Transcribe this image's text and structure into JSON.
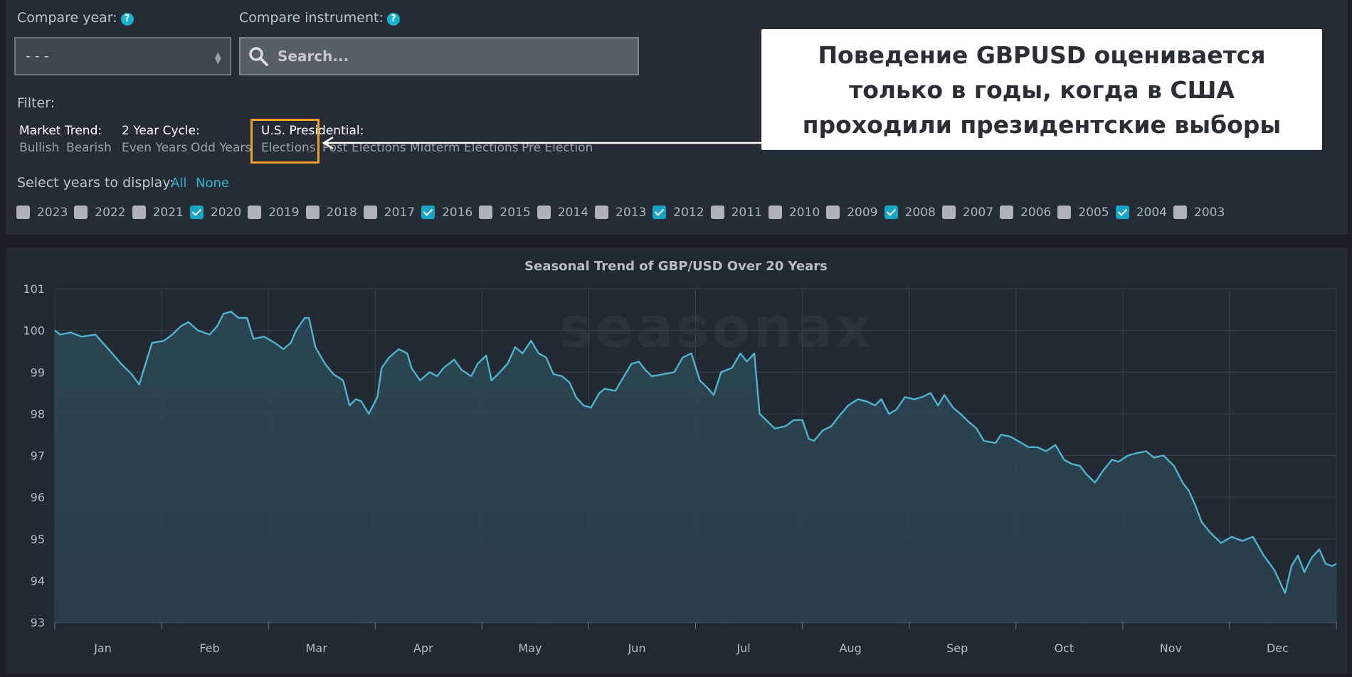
{
  "controls": {
    "compare_year_label": "Compare year:",
    "compare_year_value": "- - -",
    "compare_instrument_label": "Compare instrument:",
    "search_placeholder": "Search...",
    "help_glyph": "?"
  },
  "filter": {
    "label": "Filter:",
    "groups": [
      {
        "title": "Market Trend:",
        "options": [
          "Bullish",
          "Bearish"
        ]
      },
      {
        "title": "2 Year Cycle:",
        "options": [
          "Even Years",
          "Odd Years"
        ]
      },
      {
        "title": "U.S. Presidential:",
        "options": [
          "Elections",
          "Post Elections",
          "Midterm Elections",
          "Pre Election"
        ]
      }
    ]
  },
  "years_select": {
    "label": "Select years to display:",
    "all": "All",
    "none": "None",
    "years": [
      {
        "year": "2023",
        "checked": false
      },
      {
        "year": "2022",
        "checked": false
      },
      {
        "year": "2021",
        "checked": false
      },
      {
        "year": "2020",
        "checked": true
      },
      {
        "year": "2019",
        "checked": false
      },
      {
        "year": "2018",
        "checked": false
      },
      {
        "year": "2017",
        "checked": false
      },
      {
        "year": "2016",
        "checked": true
      },
      {
        "year": "2015",
        "checked": false
      },
      {
        "year": "2014",
        "checked": false
      },
      {
        "year": "2013",
        "checked": false
      },
      {
        "year": "2012",
        "checked": true
      },
      {
        "year": "2011",
        "checked": false
      },
      {
        "year": "2010",
        "checked": false
      },
      {
        "year": "2009",
        "checked": false
      },
      {
        "year": "2008",
        "checked": true
      },
      {
        "year": "2007",
        "checked": false
      },
      {
        "year": "2006",
        "checked": false
      },
      {
        "year": "2005",
        "checked": false
      },
      {
        "year": "2004",
        "checked": true
      },
      {
        "year": "2003",
        "checked": false
      }
    ]
  },
  "callout": {
    "lines": [
      "Поведение GBPUSD оценивается",
      "только в годы, когда в США",
      "проходили президентские выборы"
    ]
  },
  "watermark": "seasonax",
  "colors": {
    "line": "#4fb3cf",
    "accent": "#2fb3d1",
    "highlight": "#f0a020"
  },
  "chart_data": {
    "type": "area",
    "title": "Seasonal Trend of GBP/USD Over 20 Years",
    "xlabel": "",
    "ylabel": "",
    "ylim": [
      93,
      101
    ],
    "yticks": [
      93,
      94,
      95,
      96,
      97,
      98,
      99,
      100,
      101
    ],
    "xticks": [
      "Jan",
      "Feb",
      "Mar",
      "Apr",
      "May",
      "Jun",
      "Jul",
      "Aug",
      "Sep",
      "Oct",
      "Nov",
      "Dec"
    ],
    "grid": true,
    "x_unit": "month (1.0 = Jan 1, 13.0 = Dec 31)",
    "series": [
      {
        "name": "",
        "points": [
          [
            1.0,
            100.0
          ],
          [
            1.05,
            99.9
          ],
          [
            1.15,
            99.95
          ],
          [
            1.25,
            99.85
          ],
          [
            1.38,
            99.9
          ],
          [
            1.45,
            99.7
          ],
          [
            1.52,
            99.5
          ],
          [
            1.62,
            99.2
          ],
          [
            1.72,
            98.95
          ],
          [
            1.79,
            98.7
          ],
          [
            1.85,
            99.2
          ],
          [
            1.91,
            99.7
          ],
          [
            2.02,
            99.75
          ],
          [
            2.1,
            99.9
          ],
          [
            2.18,
            100.1
          ],
          [
            2.25,
            100.2
          ],
          [
            2.34,
            100.0
          ],
          [
            2.45,
            99.9
          ],
          [
            2.52,
            100.1
          ],
          [
            2.58,
            100.4
          ],
          [
            2.65,
            100.45
          ],
          [
            2.72,
            100.3
          ],
          [
            2.8,
            100.3
          ],
          [
            2.86,
            99.8
          ],
          [
            2.96,
            99.85
          ],
          [
            3.06,
            99.7
          ],
          [
            3.14,
            99.55
          ],
          [
            3.21,
            99.7
          ],
          [
            3.26,
            100.0
          ],
          [
            3.34,
            100.3
          ],
          [
            3.38,
            100.3
          ],
          [
            3.44,
            99.6
          ],
          [
            3.53,
            99.2
          ],
          [
            3.61,
            98.95
          ],
          [
            3.7,
            98.8
          ],
          [
            3.76,
            98.2
          ],
          [
            3.82,
            98.35
          ],
          [
            3.87,
            98.3
          ],
          [
            3.94,
            98.0
          ],
          [
            4.02,
            98.4
          ],
          [
            4.06,
            99.1
          ],
          [
            4.13,
            99.35
          ],
          [
            4.22,
            99.55
          ],
          [
            4.3,
            99.45
          ],
          [
            4.34,
            99.1
          ],
          [
            4.42,
            98.8
          ],
          [
            4.51,
            99.0
          ],
          [
            4.58,
            98.9
          ],
          [
            4.64,
            99.1
          ],
          [
            4.74,
            99.3
          ],
          [
            4.81,
            99.05
          ],
          [
            4.9,
            98.9
          ],
          [
            4.96,
            99.2
          ],
          [
            5.04,
            99.4
          ],
          [
            5.09,
            98.8
          ],
          [
            5.15,
            98.95
          ],
          [
            5.24,
            99.2
          ],
          [
            5.31,
            99.6
          ],
          [
            5.38,
            99.45
          ],
          [
            5.46,
            99.75
          ],
          [
            5.53,
            99.45
          ],
          [
            5.6,
            99.35
          ],
          [
            5.67,
            98.95
          ],
          [
            5.75,
            98.9
          ],
          [
            5.82,
            98.75
          ],
          [
            5.88,
            98.4
          ],
          [
            5.95,
            98.2
          ],
          [
            6.02,
            98.15
          ],
          [
            6.1,
            98.5
          ],
          [
            6.15,
            98.6
          ],
          [
            6.25,
            98.55
          ],
          [
            6.33,
            98.9
          ],
          [
            6.4,
            99.2
          ],
          [
            6.47,
            99.25
          ],
          [
            6.53,
            99.05
          ],
          [
            6.59,
            98.9
          ],
          [
            6.7,
            98.95
          ],
          [
            6.8,
            99.0
          ],
          [
            6.88,
            99.35
          ],
          [
            6.96,
            99.45
          ],
          [
            7.04,
            98.8
          ],
          [
            7.12,
            98.6
          ],
          [
            7.17,
            98.45
          ],
          [
            7.24,
            99.0
          ],
          [
            7.34,
            99.1
          ],
          [
            7.42,
            99.45
          ],
          [
            7.48,
            99.25
          ],
          [
            7.55,
            99.45
          ],
          [
            7.6,
            98.0
          ],
          [
            7.68,
            97.8
          ],
          [
            7.74,
            97.65
          ],
          [
            7.84,
            97.7
          ],
          [
            7.92,
            97.85
          ],
          [
            8.0,
            97.85
          ],
          [
            8.06,
            97.4
          ],
          [
            8.11,
            97.35
          ],
          [
            8.19,
            97.6
          ],
          [
            8.27,
            97.7
          ],
          [
            8.33,
            97.9
          ],
          [
            8.43,
            98.2
          ],
          [
            8.52,
            98.35
          ],
          [
            8.6,
            98.3
          ],
          [
            8.68,
            98.2
          ],
          [
            8.74,
            98.35
          ],
          [
            8.81,
            98.0
          ],
          [
            8.88,
            98.1
          ],
          [
            8.96,
            98.4
          ],
          [
            9.05,
            98.35
          ],
          [
            9.12,
            98.4
          ],
          [
            9.2,
            98.5
          ],
          [
            9.27,
            98.2
          ],
          [
            9.33,
            98.45
          ],
          [
            9.41,
            98.15
          ],
          [
            9.48,
            98.0
          ],
          [
            9.56,
            97.8
          ],
          [
            9.63,
            97.65
          ],
          [
            9.7,
            97.35
          ],
          [
            9.81,
            97.3
          ],
          [
            9.86,
            97.5
          ],
          [
            9.95,
            97.45
          ],
          [
            10.05,
            97.3
          ],
          [
            10.12,
            97.2
          ],
          [
            10.2,
            97.2
          ],
          [
            10.28,
            97.1
          ],
          [
            10.37,
            97.25
          ],
          [
            10.45,
            96.9
          ],
          [
            10.52,
            96.8
          ],
          [
            10.6,
            96.75
          ],
          [
            10.66,
            96.55
          ],
          [
            10.74,
            96.35
          ],
          [
            10.82,
            96.65
          ],
          [
            10.9,
            96.9
          ],
          [
            10.96,
            96.85
          ],
          [
            11.05,
            97.0
          ],
          [
            11.12,
            97.05
          ],
          [
            11.22,
            97.1
          ],
          [
            11.29,
            96.95
          ],
          [
            11.38,
            97.0
          ],
          [
            11.48,
            96.75
          ],
          [
            11.56,
            96.35
          ],
          [
            11.62,
            96.15
          ],
          [
            11.68,
            95.8
          ],
          [
            11.74,
            95.4
          ],
          [
            11.82,
            95.15
          ],
          [
            11.92,
            94.9
          ],
          [
            12.02,
            95.05
          ],
          [
            12.12,
            94.95
          ],
          [
            12.22,
            95.05
          ],
          [
            12.32,
            94.6
          ],
          [
            12.42,
            94.25
          ],
          [
            12.52,
            93.7
          ],
          [
            12.58,
            94.35
          ],
          [
            12.64,
            94.6
          ],
          [
            12.7,
            94.2
          ],
          [
            12.77,
            94.55
          ],
          [
            12.84,
            94.75
          ],
          [
            12.9,
            94.4
          ],
          [
            12.96,
            94.35
          ],
          [
            13.0,
            94.4
          ]
        ]
      }
    ]
  }
}
